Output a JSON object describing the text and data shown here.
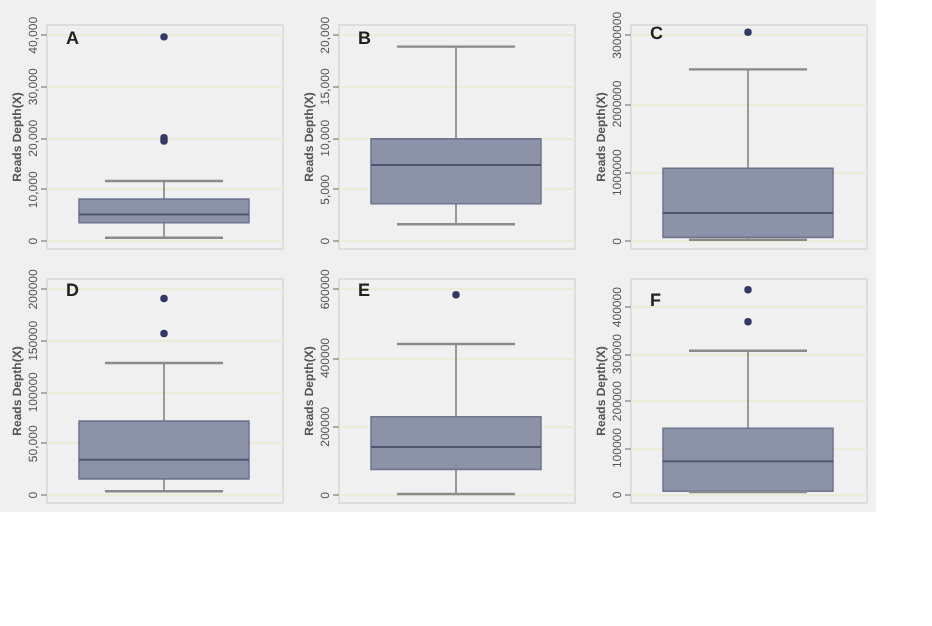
{
  "chart_data": [
    {
      "type": "box",
      "title": "A",
      "ylabel": "Reads Depth(X)",
      "categories": [
        null
      ],
      "color": "#8c93a8",
      "tick_labels": "y",
      "grid": "y",
      "ylim": [
        -1500,
        42000
      ],
      "yticks": [
        0,
        {
          "value": 10000,
          "label": "10,000"
        },
        {
          "value": 20000,
          "label": "20,000"
        },
        {
          "value": 30000,
          "label": "30,000"
        },
        {
          "value": 40000,
          "label": "40,000"
        }
      ],
      "boxes": [
        {
          "low": 500,
          "q1": 3400,
          "median": 5000,
          "q3": 8000,
          "high": 11500,
          "outliers": [
            19300,
            19900,
            39500
          ]
        }
      ]
    },
    {
      "type": "box",
      "title": "B",
      "ylabel": "Reads Depth(X)",
      "categories": [
        null
      ],
      "color": "#8c93a8",
      "tick_labels": "y",
      "grid": "y",
      "ylim": [
        -750,
        21000
      ],
      "yticks": [
        0,
        {
          "value": 5000,
          "label": "5,000"
        },
        {
          "value": 10000,
          "label": "10,000"
        },
        {
          "value": 15000,
          "label": "15,000"
        },
        {
          "value": 20000,
          "label": "20,000"
        }
      ],
      "boxes": [
        {
          "low": 1550,
          "q1": 3550,
          "median": 7300,
          "q3": 9850,
          "high": 18800
        }
      ]
    },
    {
      "type": "box",
      "title": "C",
      "ylabel": "Reads Depth(X)",
      "categories": [
        null
      ],
      "color": "#8c93a8",
      "tick_labels": "y",
      "grid": "y",
      "ylim": [
        -110000,
        3150000
      ],
      "yticks": [
        0,
        1000000,
        2000000,
        3000000
      ],
      "boxes": [
        {
          "low": 10000,
          "q1": 45000,
          "median": 400000,
          "q3": 1050000,
          "high": 2490000,
          "outliers": [
            3030000
          ]
        }
      ]
    },
    {
      "type": "box",
      "title": "D",
      "ylabel": "Reads Depth(X)",
      "categories": [
        null
      ],
      "color": "#8c93a8",
      "tick_labels": "y",
      "grid": "y",
      "ylim": [
        -7500,
        210000
      ],
      "yticks": [
        0,
        {
          "value": 50000,
          "label": "50,000"
        },
        100000,
        150000,
        200000
      ],
      "boxes": [
        {
          "low": 3000,
          "q1": 15000,
          "median": 33500,
          "q3": 71000,
          "high": 127500,
          "outliers": [
            156000,
            190000
          ]
        }
      ]
    },
    {
      "type": "box",
      "title": "E",
      "ylabel": "Reads Depth(X)",
      "categories": [
        null
      ],
      "color": "#8c93a8",
      "tick_labels": "y",
      "grid": "y",
      "ylim": [
        -22000,
        630000
      ],
      "yticks": [
        0,
        200000,
        400000,
        600000
      ],
      "boxes": [
        {
          "low": 1500,
          "q1": 73000,
          "median": 138000,
          "q3": 226000,
          "high": 438000,
          "outliers": [
            581000
          ]
        }
      ]
    },
    {
      "type": "box",
      "title": "F",
      "ylabel": "Reads Depth(X)",
      "categories": [
        null
      ],
      "color": "#8c93a8",
      "tick_labels": "y",
      "grid": "y",
      "ylim": [
        -17000,
        460000
      ],
      "yticks": [
        0,
        100000,
        200000,
        300000,
        400000
      ],
      "boxes": [
        {
          "low": 4000,
          "q1": 6000,
          "median": 70000,
          "q3": 140000,
          "high": 305000,
          "outliers": [
            367000,
            435000
          ]
        }
      ]
    }
  ]
}
